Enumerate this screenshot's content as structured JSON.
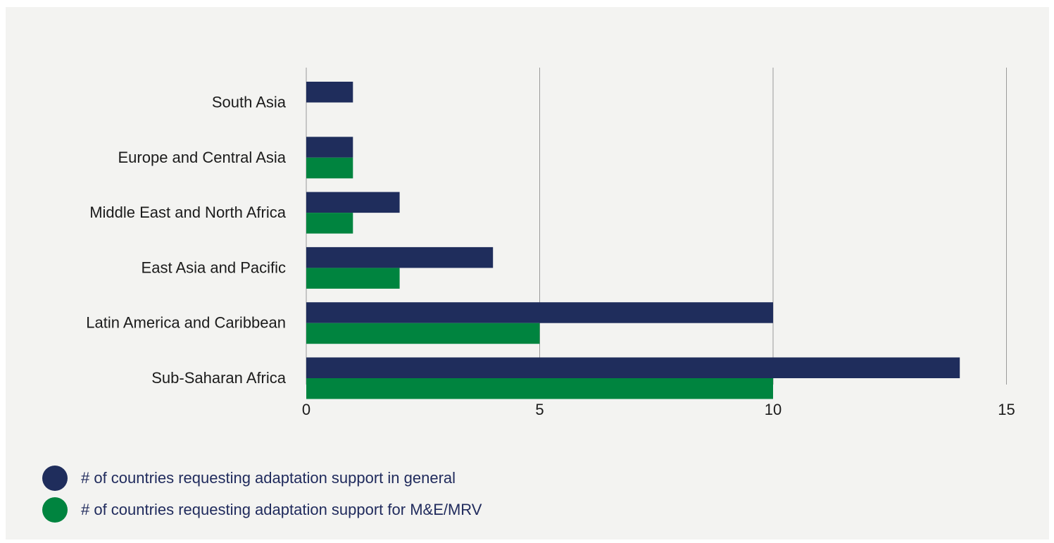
{
  "chart_data": {
    "type": "bar",
    "orientation": "horizontal",
    "categories": [
      "South Asia",
      "Europe and Central Asia",
      "Middle East and North Africa",
      "East Asia and Pacific",
      "Latin America and Caribbean",
      "Sub-Saharan Africa"
    ],
    "series": [
      {
        "name": "# of countries requesting adaptation support in general",
        "color": "#1f2d5c",
        "values": [
          1,
          1,
          2,
          4,
          10,
          14
        ]
      },
      {
        "name": "# of countries requesting adaptation support for M&E/MRV",
        "color": "#00843f",
        "values": [
          null,
          1,
          1,
          2,
          5,
          10
        ]
      }
    ],
    "xlim": [
      0,
      15
    ],
    "xticks": [
      "0",
      "5",
      "10",
      "15"
    ],
    "grid": true,
    "legend_position": "bottom-left",
    "title": "",
    "xlabel": "",
    "ylabel": ""
  }
}
